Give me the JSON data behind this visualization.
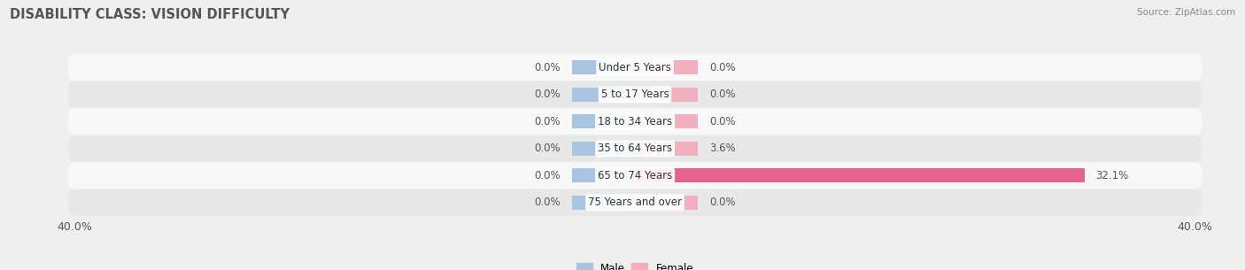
{
  "title": "DISABILITY CLASS: VISION DIFFICULTY",
  "source": "Source: ZipAtlas.com",
  "categories": [
    "Under 5 Years",
    "5 to 17 Years",
    "18 to 34 Years",
    "35 to 64 Years",
    "65 to 74 Years",
    "75 Years and over"
  ],
  "male_values": [
    0.0,
    0.0,
    0.0,
    0.0,
    0.0,
    0.0
  ],
  "female_values": [
    0.0,
    0.0,
    0.0,
    3.6,
    32.1,
    0.0
  ],
  "male_color": "#a8c4e0",
  "female_color_soft": "#f2afc0",
  "female_color_strong": "#e5638d",
  "xlim": 40.0,
  "min_bar_size": 4.5,
  "bar_height": 0.52,
  "bg_color": "#efefef",
  "row_colors": [
    "#f8f8f8",
    "#e8e8e8"
  ],
  "title_fontsize": 10.5,
  "label_fontsize": 8.5,
  "tick_fontsize": 9,
  "value_label_color": "#555555",
  "cat_label_color": "#333333"
}
